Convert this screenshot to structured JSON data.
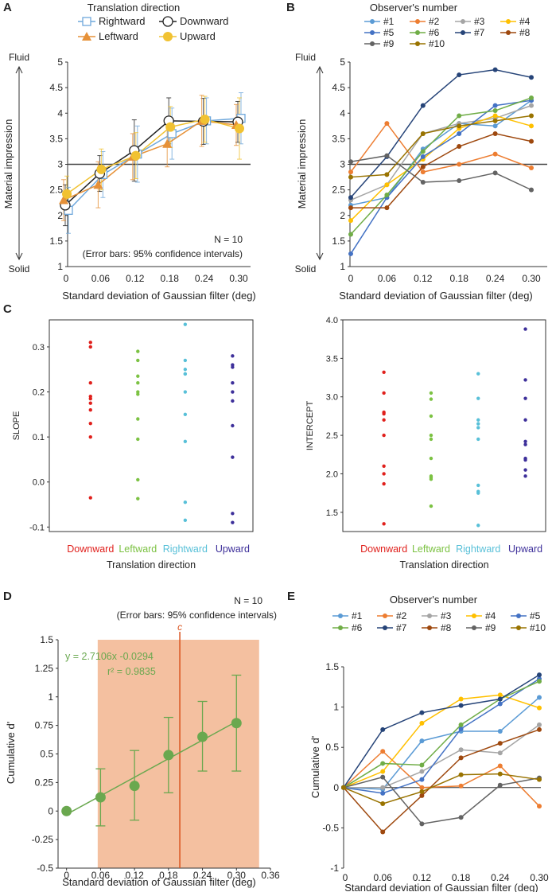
{
  "panel_labels": [
    "A",
    "B",
    "C",
    "D",
    "E"
  ],
  "colors": {
    "rightward": "#6fa8dc",
    "leftward": "#e69138",
    "downward": "#222222",
    "upward": "#f1c232",
    "c_red": "#e0201c",
    "c_green": "#7cc243",
    "c_cyan": "#58c0d8",
    "c_purple": "#3d2f9a",
    "d_green": "#6aa84f",
    "d_shade": "#f4c0a0",
    "d_line": "#d9531e"
  },
  "observer_colors": [
    "#5b9bd5",
    "#ed7d31",
    "#a5a5a5",
    "#ffc000",
    "#4472c4",
    "#70ad47",
    "#264478",
    "#9e480e",
    "#636363",
    "#997300"
  ],
  "chart_data": [
    {
      "id": "A",
      "type": "line",
      "title": "Translation direction",
      "xlabel": "Standard deviation of Gaussian filter (deg)",
      "ylabel": "Material impression",
      "ytop_label": "Fluid",
      "ybottom_label": "Solid",
      "x": [
        "0",
        "0.06",
        "0.12",
        "0.18",
        "0.24",
        "0.30"
      ],
      "ylim": [
        1,
        5
      ],
      "yticks": [
        "1",
        "1.5",
        "2",
        "2.5",
        "3",
        "3.5",
        "4",
        "4.5",
        "5"
      ],
      "reference_y": 3,
      "annotation": [
        "N = 10",
        "(Error bars: 95% confidence intervals)"
      ],
      "series": [
        {
          "name": "Rightward",
          "marker": "open-square",
          "values": [
            2.1,
            2.8,
            3.2,
            3.6,
            3.85,
            3.9
          ],
          "ci": [
            0.45,
            0.45,
            0.55,
            0.5,
            0.45,
            0.5
          ]
        },
        {
          "name": "Downward",
          "marker": "open-circle",
          "values": [
            2.2,
            2.82,
            3.27,
            3.85,
            3.84,
            3.83
          ],
          "ci": [
            0.4,
            0.35,
            0.6,
            0.45,
            0.45,
            0.4
          ]
        },
        {
          "name": "Leftward",
          "marker": "triangle",
          "values": [
            2.3,
            2.6,
            3.15,
            3.4,
            3.85,
            3.77
          ],
          "ci": [
            0.4,
            0.45,
            0.45,
            0.45,
            0.5,
            0.4
          ]
        },
        {
          "name": "Upward",
          "marker": "filled-circle",
          "values": [
            2.42,
            2.9,
            3.17,
            3.73,
            3.88,
            3.7
          ],
          "ci": [
            0.35,
            0.4,
            0.45,
            0.4,
            0.45,
            0.6
          ]
        }
      ],
      "legend": [
        [
          "Rightward",
          "Downward"
        ],
        [
          "Leftward",
          "Upward"
        ]
      ]
    },
    {
      "id": "B",
      "type": "line",
      "title": "Observer's number",
      "xlabel": "Standard deviation of Gaussian filter (deg)",
      "ylabel": "Material impression",
      "ytop_label": "Fluid",
      "ybottom_label": "Solid",
      "x": [
        "0",
        "0.06",
        "0.12",
        "0.18",
        "0.24",
        "0.30"
      ],
      "ylim": [
        1,
        5
      ],
      "yticks": [
        "1",
        "1.5",
        "2",
        "2.5",
        "3",
        "3.5",
        "4",
        "4.5",
        "5"
      ],
      "reference_y": 3,
      "series": [
        {
          "name": "#1",
          "values": [
            2.2,
            2.35,
            3.3,
            3.8,
            3.75,
            4.25
          ]
        },
        {
          "name": "#2",
          "values": [
            2.85,
            3.8,
            2.85,
            3.0,
            3.2,
            2.93
          ]
        },
        {
          "name": "#3",
          "values": [
            2.3,
            2.6,
            3.6,
            3.8,
            3.9,
            4.15
          ]
        },
        {
          "name": "#4",
          "values": [
            1.9,
            2.6,
            3.1,
            3.7,
            3.95,
            3.75
          ]
        },
        {
          "name": "#5",
          "values": [
            1.25,
            2.35,
            3.15,
            3.6,
            4.15,
            4.25
          ]
        },
        {
          "name": "#6",
          "values": [
            1.63,
            2.4,
            3.25,
            3.95,
            4.05,
            4.3
          ]
        },
        {
          "name": "#7",
          "values": [
            2.35,
            3.15,
            4.15,
            4.75,
            4.85,
            4.7
          ]
        },
        {
          "name": "#8",
          "values": [
            2.15,
            2.15,
            2.95,
            3.35,
            3.6,
            3.45
          ]
        },
        {
          "name": "#9",
          "values": [
            3.05,
            3.17,
            2.65,
            2.68,
            2.83,
            2.5
          ]
        },
        {
          "name": "#10",
          "values": [
            2.75,
            2.8,
            3.6,
            3.75,
            3.85,
            3.95
          ]
        }
      ],
      "legend_rows": [
        [
          "#1",
          "#2",
          "#3",
          "#4"
        ],
        [
          "#5",
          "#6",
          "#7",
          "#8"
        ],
        [
          "#9",
          "#10"
        ]
      ]
    },
    {
      "id": "C-slope",
      "type": "scatter",
      "ylabel": "SLOPE",
      "xlabel": "Translation direction",
      "categories": [
        "Downward",
        "Leftward",
        "Rightward",
        "Upward"
      ],
      "ylim": [
        -0.11,
        0.36
      ],
      "yticks": [
        "-0.1",
        "0.0",
        "0.1",
        "0.2",
        "0.3"
      ],
      "points": [
        [
          0.31,
          0.3,
          0.22,
          0.19,
          0.185,
          0.175,
          0.16,
          0.13,
          0.1,
          -0.035
        ],
        [
          0.29,
          0.27,
          0.235,
          0.22,
          0.2,
          0.195,
          0.14,
          0.095,
          0.005,
          -0.037
        ],
        [
          0.35,
          0.27,
          0.25,
          0.24,
          0.24,
          0.2,
          0.15,
          0.09,
          -0.045,
          -0.085
        ],
        [
          0.28,
          0.26,
          0.255,
          0.22,
          0.2,
          0.18,
          0.125,
          0.055,
          -0.07,
          -0.09
        ]
      ]
    },
    {
      "id": "C-intercept",
      "type": "scatter",
      "ylabel": "INTERCEPT",
      "xlabel": "Translation direction",
      "categories": [
        "Downward",
        "Leftward",
        "Rightward",
        "Upward"
      ],
      "ylim": [
        1.25,
        4.0
      ],
      "yticks": [
        "1.5",
        "2.0",
        "2.5",
        "3.0",
        "3.5",
        "4.0"
      ],
      "points": [
        [
          3.32,
          3.05,
          2.8,
          2.78,
          2.7,
          2.5,
          2.1,
          2.0,
          1.87,
          1.35
        ],
        [
          3.05,
          2.97,
          2.75,
          2.5,
          2.45,
          2.2,
          1.97,
          1.95,
          1.93,
          1.58
        ],
        [
          3.3,
          2.98,
          2.7,
          2.65,
          2.6,
          2.45,
          1.85,
          1.77,
          1.75,
          1.33
        ],
        [
          3.88,
          3.22,
          2.98,
          2.7,
          2.42,
          2.38,
          2.2,
          2.18,
          2.05,
          1.97
        ]
      ]
    },
    {
      "id": "D",
      "type": "scatter",
      "xlabel": "Standard deviation of Gaussian filter (deg)",
      "ylabel": "Cumulative d'",
      "xlim": [
        -0.015,
        0.36
      ],
      "xticks": [
        "0",
        "0.06",
        "0.12",
        "0.18",
        "0.24",
        "0.30",
        "0.36"
      ],
      "ylim": [
        -0.5,
        1.5
      ],
      "yticks": [
        "-0.5",
        "-0.25",
        "0",
        "0.25",
        "0.5",
        "0.75",
        "1",
        "1.25",
        "1.5"
      ],
      "x": [
        0,
        0.06,
        0.12,
        0.18,
        0.24,
        0.3
      ],
      "values": [
        0,
        0.12,
        0.22,
        0.49,
        0.65,
        0.77
      ],
      "ci_low": [
        0,
        -0.13,
        -0.08,
        0.16,
        0.35,
        0.35
      ],
      "ci_high": [
        0,
        0.37,
        0.53,
        0.82,
        0.96,
        1.19
      ],
      "fit": {
        "slope": 2.7106,
        "intercept": -0.0294,
        "label": "y = 2.7106x -0.0294",
        "r2_label": "r² = 0.9835"
      },
      "shaded_range": [
        0.055,
        0.34
      ],
      "criterion_x": 0.2,
      "criterion_label": "c",
      "annotation": [
        "N = 10",
        "(Error bars: 95% confidence intervals)"
      ]
    },
    {
      "id": "E",
      "type": "line",
      "title": "Observer's number",
      "xlabel": "Standard deviation of Gaussian filter (deg)",
      "ylabel": "Cumulative d'",
      "x": [
        "0",
        "0.06",
        "0.12",
        "0.18",
        "0.24",
        "0.30"
      ],
      "ylim": [
        -1,
        1.5
      ],
      "yticks": [
        "-1",
        "-0.5",
        "0",
        "0.5",
        "1",
        "1.5"
      ],
      "series": [
        {
          "name": "#1",
          "values": [
            0,
            -0.02,
            0.58,
            0.7,
            0.7,
            1.12
          ]
        },
        {
          "name": "#2",
          "values": [
            0,
            0.45,
            0.0,
            0.02,
            0.27,
            -0.23
          ]
        },
        {
          "name": "#3",
          "values": [
            0,
            0.0,
            0.2,
            0.47,
            0.43,
            0.78
          ]
        },
        {
          "name": "#4",
          "values": [
            0,
            0.2,
            0.8,
            1.1,
            1.15,
            0.99
          ]
        },
        {
          "name": "#5",
          "values": [
            0,
            -0.07,
            0.1,
            0.73,
            1.04,
            1.35
          ]
        },
        {
          "name": "#6",
          "values": [
            0,
            0.3,
            0.28,
            0.78,
            1.1,
            1.32
          ]
        },
        {
          "name": "#7",
          "values": [
            0,
            0.72,
            0.93,
            1.02,
            1.1,
            1.4
          ]
        },
        {
          "name": "#8",
          "values": [
            0,
            -0.55,
            -0.1,
            0.37,
            0.55,
            0.72
          ]
        },
        {
          "name": "#9",
          "values": [
            0,
            0.13,
            -0.45,
            -0.37,
            0.03,
            0.12
          ]
        },
        {
          "name": "#10",
          "values": [
            0,
            -0.2,
            -0.05,
            0.16,
            0.17,
            0.1
          ]
        }
      ],
      "legend_rows": [
        [
          "#1",
          "#2",
          "#3",
          "#4",
          "#5"
        ],
        [
          "#6",
          "#7",
          "#8",
          "#9",
          "#10"
        ]
      ]
    }
  ]
}
